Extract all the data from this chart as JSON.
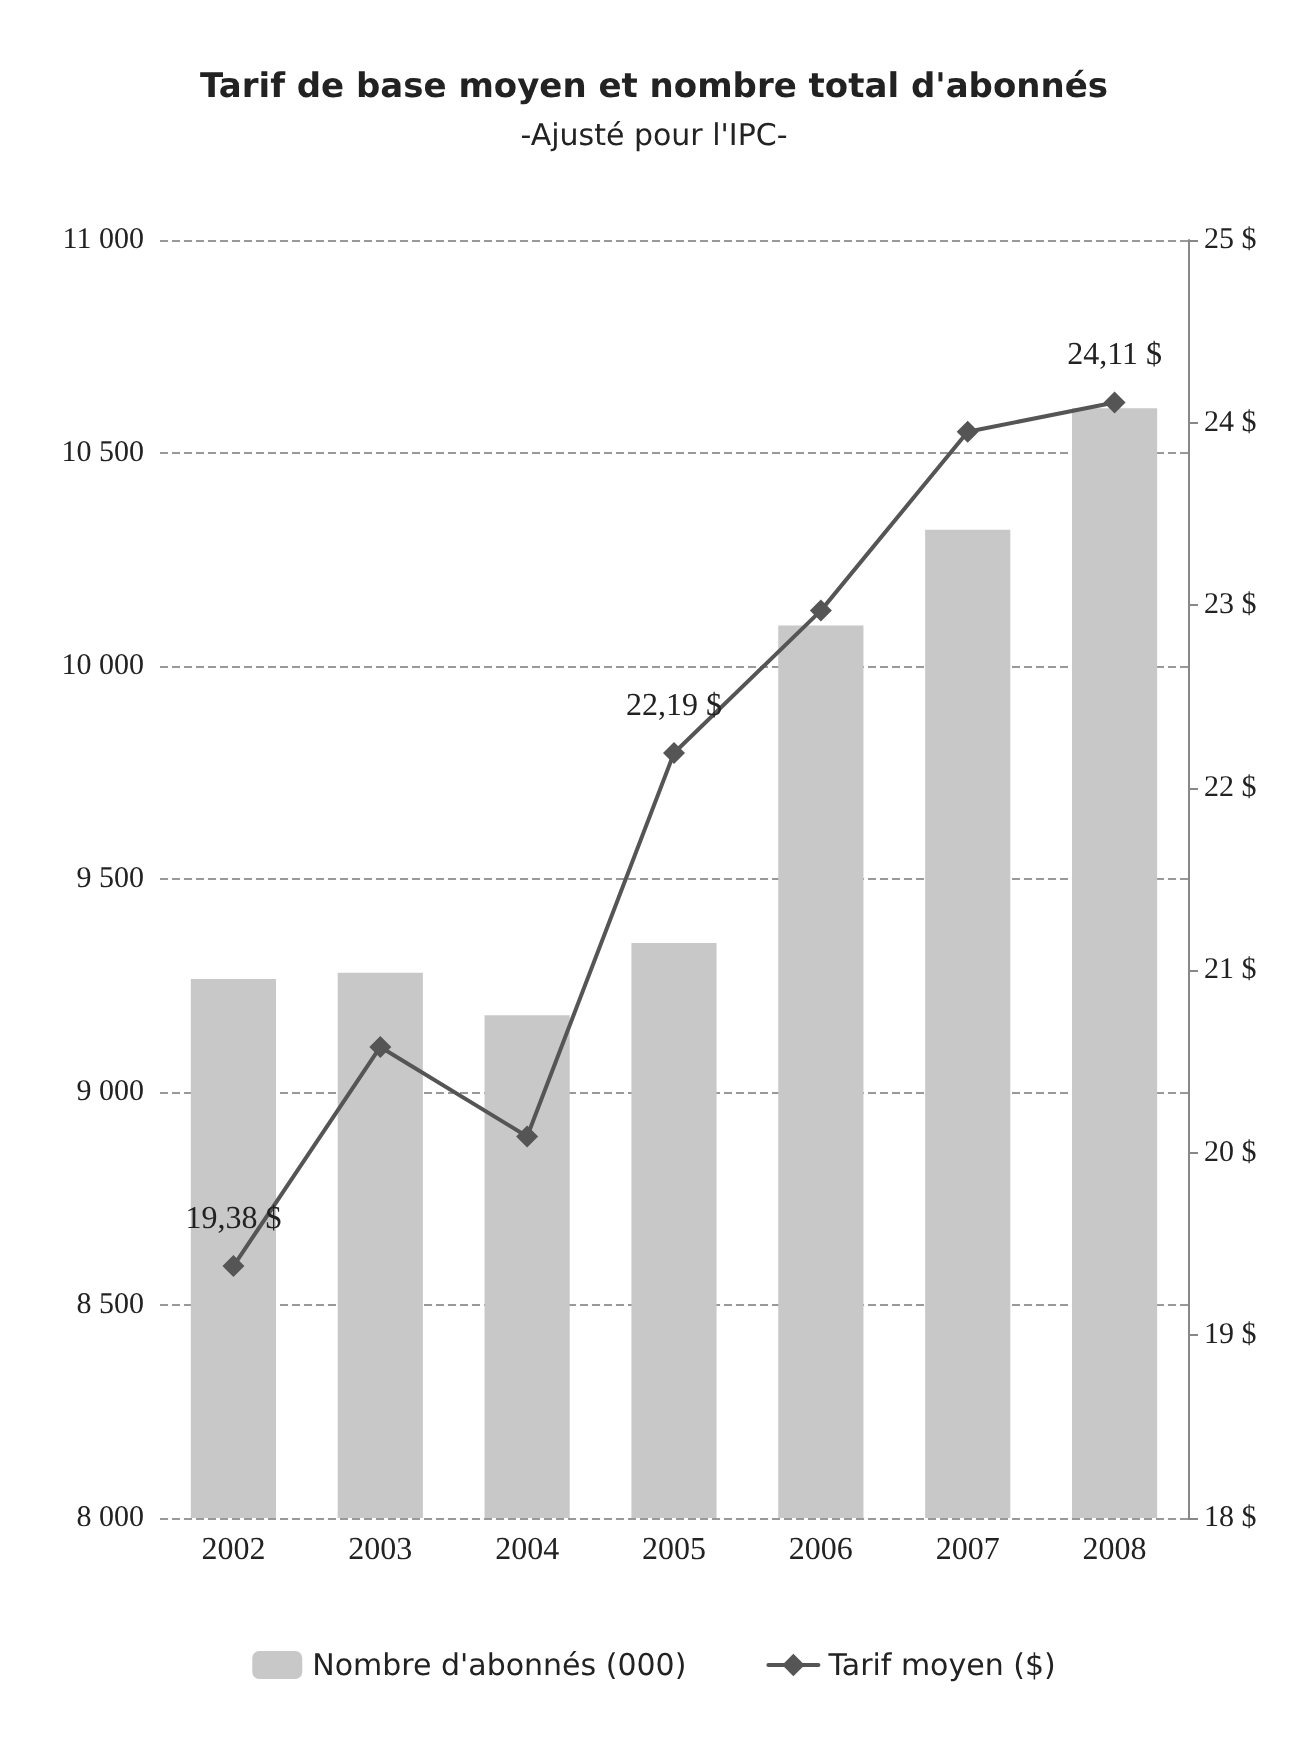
{
  "chart_data": {
    "type": "bar",
    "title": "Tarif de base moyen et nombre total d'abonnés",
    "subtitle": "-Ajusté pour l'IPC-",
    "categories": [
      "2002",
      "2003",
      "2004",
      "2005",
      "2006",
      "2007",
      "2008"
    ],
    "series": [
      {
        "name": "Nombre d'abonnés (000)",
        "color": "#c8c8c8",
        "values": [
          9265,
          9280,
          9180,
          9350,
          10095,
          10320,
          10605
        ]
      },
      {
        "name": "Tarif moyen ($)",
        "type": "line",
        "axis": "y2",
        "color": "#555555",
        "marker": "diamond",
        "line_style": "solid",
        "values": [
          19.38,
          20.58,
          20.09,
          22.19,
          22.97,
          23.95,
          24.11
        ],
        "value_labels": [
          "19,38 $",
          null,
          null,
          "22,19 $",
          null,
          null,
          "24,11 $"
        ]
      }
    ],
    "ylim": [
      8000,
      11000
    ],
    "yticks": [
      {
        "value": 8000,
        "label": "8 000"
      },
      {
        "value": 8500,
        "label": "8 500"
      },
      {
        "value": 9000,
        "label": "9 000"
      },
      {
        "value": 9500,
        "label": "9 500"
      },
      {
        "value": 10000,
        "label": "10 000"
      },
      {
        "value": 10500,
        "label": "10 500"
      },
      {
        "value": 11000,
        "label": "11 000"
      }
    ],
    "y2lim": [
      18,
      25
    ],
    "y2ticks": [
      {
        "value": 18,
        "label": "18 $"
      },
      {
        "value": 19,
        "label": "19 $"
      },
      {
        "value": 20,
        "label": "20 $"
      },
      {
        "value": 21,
        "label": "21 $"
      },
      {
        "value": 22,
        "label": "22 $"
      },
      {
        "value": 23,
        "label": "23 $"
      },
      {
        "value": 24,
        "label": "24 $"
      },
      {
        "value": 25,
        "label": "25 $"
      }
    ],
    "grid": "y",
    "legend": "bottom"
  }
}
